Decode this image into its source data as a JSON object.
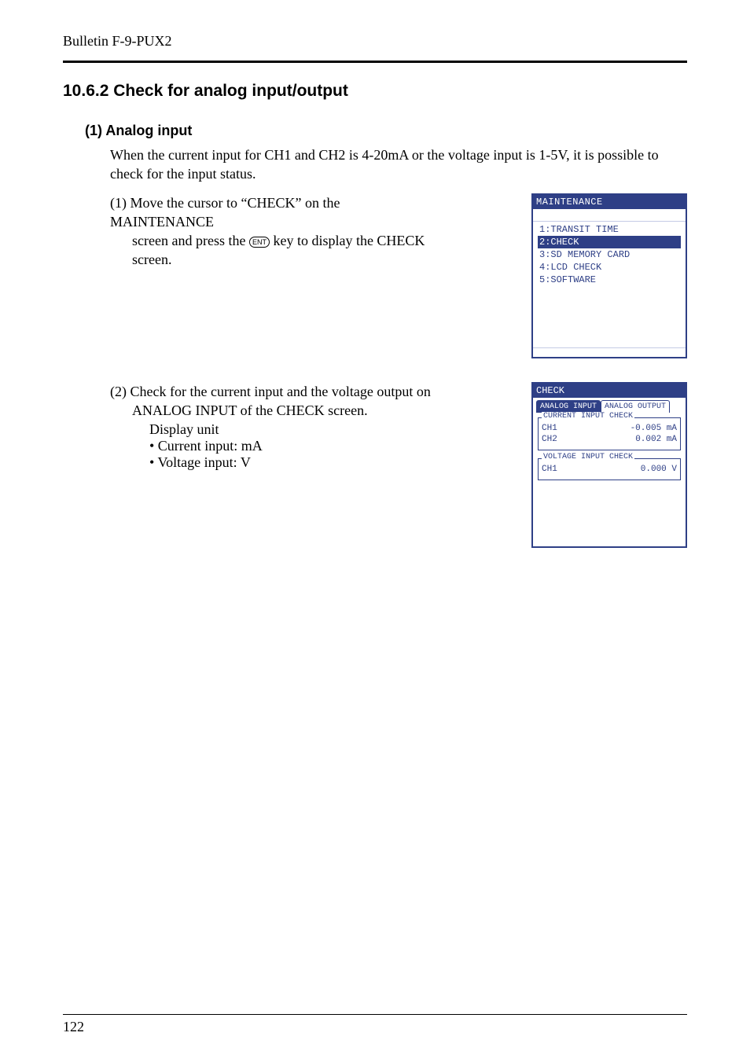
{
  "header": {
    "bulletin": "Bulletin F-9-PUX2"
  },
  "section": {
    "number_title": "10.6.2  Check for analog input/output",
    "sub": "(1)  Analog input",
    "intro": "When the current input for CH1 and CH2 is 4-20mA or the voltage input is 1-5V, it is possible to check for the input status."
  },
  "step1": {
    "num": "(1)",
    "line1": "Move the cursor to “CHECK” on the MAINTENANCE",
    "line2a": "screen and press the ",
    "ent": "ENT",
    "line2b": " key to display the CHECK",
    "line3": "screen."
  },
  "step2": {
    "num": "(2)",
    "line1": "Check for the current input and the voltage output on",
    "line2": "ANALOG INPUT of the CHECK screen.",
    "display_unit": "Display unit",
    "bullet1": "• Current input: mA",
    "bullet2": "• Voltage input: V"
  },
  "lcd1": {
    "title": "MAINTENANCE",
    "items": [
      {
        "label": "1:TRANSIT TIME",
        "selected": false
      },
      {
        "label": "2:CHECK",
        "selected": true
      },
      {
        "label": "3:SD MEMORY CARD",
        "selected": false
      },
      {
        "label": "4:LCD CHECK",
        "selected": false
      },
      {
        "label": "5:SOFTWARE",
        "selected": false
      }
    ]
  },
  "lcd2": {
    "title": "CHECK",
    "tab_active": "ANALOG INPUT",
    "tab_inactive": "ANALOG OUTPUT",
    "current": {
      "legend": "CURRENT INPUT CHECK",
      "rows": [
        {
          "ch": "CH1",
          "val": "-0.005 mA"
        },
        {
          "ch": "CH2",
          "val": "0.002 mA"
        }
      ]
    },
    "voltage": {
      "legend": "VOLTAGE INPUT CHECK",
      "rows": [
        {
          "ch": "CH1",
          "val": "0.000 V"
        }
      ]
    }
  },
  "page": "122",
  "colors": {
    "lcd_blue": "#2e3f86",
    "text": "#000000",
    "bg": "#ffffff"
  }
}
